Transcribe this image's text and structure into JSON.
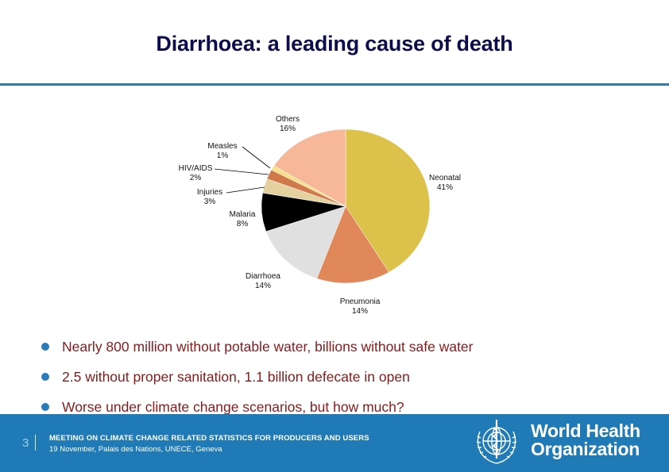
{
  "slide": {
    "title": "Diarrhoea: a leading cause of death",
    "accent_color": "#2d7ab3",
    "title_color": "#0d0d4d",
    "bullet_text_color": "#8b1a1a"
  },
  "chart_data": {
    "type": "pie",
    "title": "",
    "start_angle": "12 o'clock, clockwise",
    "labels": [
      "Neonatal",
      "Pneumonia",
      "Diarrhoea",
      "Malaria",
      "Injuries",
      "HIV/AIDS",
      "Measles",
      "Others"
    ],
    "values": [
      41,
      14,
      14,
      8,
      3,
      2,
      1,
      16
    ],
    "value_labels": [
      "41%",
      "14%",
      "14%",
      "8%",
      "3%",
      "2%",
      "1%",
      "16%"
    ],
    "colors": [
      "#dcc24a",
      "#e0885a",
      "#e0e0e0",
      "#000000",
      "#e3d1a0",
      "#d07a4c",
      "#f7e08a",
      "#f7b89a"
    ],
    "legend": "none (labels placed next to slices with leader lines for Measles, HIV/AIDS, Injuries)"
  },
  "chart_labels": {
    "neonatal": {
      "name": "Neonatal",
      "pct": "41%"
    },
    "pneumonia": {
      "name": "Pneumonia",
      "pct": "14%"
    },
    "diarrhoea": {
      "name": "Diarrhoea",
      "pct": "14%"
    },
    "malaria": {
      "name": "Malaria",
      "pct": "8%"
    },
    "injuries": {
      "name": "Injuries",
      "pct": "3%"
    },
    "hivaids": {
      "name": "HIV/AIDS",
      "pct": "2%"
    },
    "measles": {
      "name": "Measles",
      "pct": "1%"
    },
    "others": {
      "name": "Others",
      "pct": "16%"
    }
  },
  "bullets": [
    "Nearly 800 million without potable water, billions without safe water",
    "2.5 without proper sanitation, 1.1 billion defecate in open",
    "Worse under climate change scenarios, but how much?"
  ],
  "footer": {
    "page_number": "3",
    "meeting": "MEETING ON CLIMATE CHANGE RELATED STATISTICS FOR PRODUCERS AND USERS",
    "date_location": "19 November, Palais des Nations, UNECE, Geneva",
    "org_line1": "World Health",
    "org_line2": "Organization",
    "background_color": "#1f7ab6"
  }
}
